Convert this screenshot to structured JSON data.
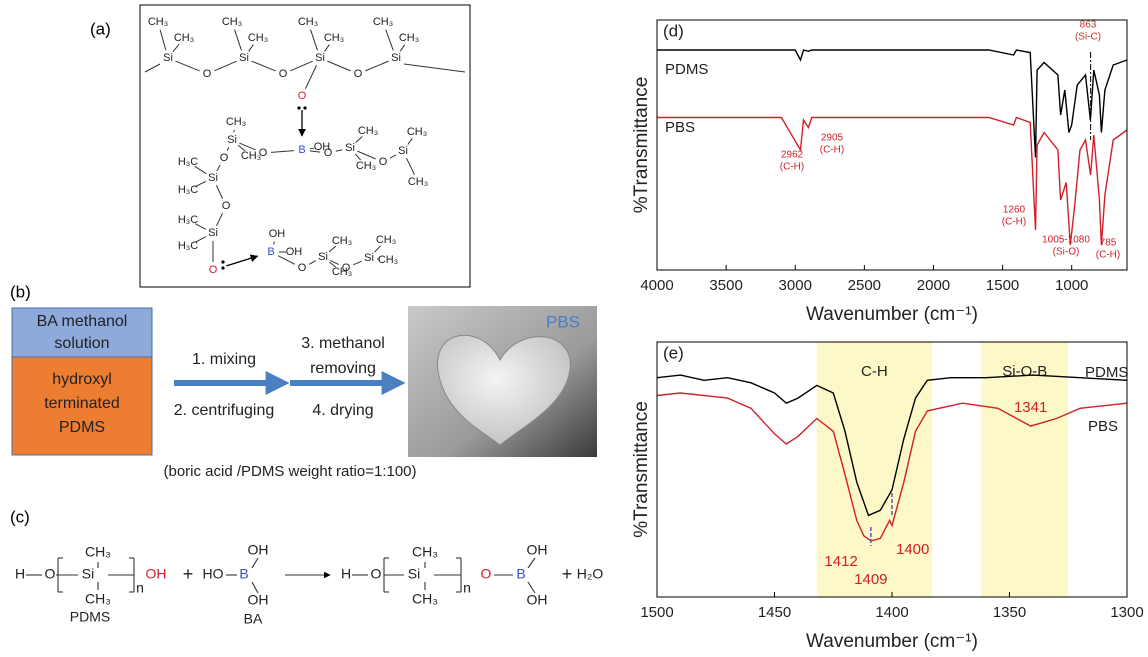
{
  "panel_a": {
    "label": "(a)",
    "atoms": [
      "CH₃",
      "CH₃",
      "Si",
      "O",
      "CH₃",
      "CH₃",
      "Si",
      "O",
      "CH₃",
      "CH₃",
      "Si",
      "O",
      "CH₃",
      "CH₃",
      "Si",
      "O",
      "B",
      "OH",
      "O",
      "Si",
      "CH₃",
      "CH₃",
      "O",
      "H₃C",
      "Si",
      "H₃C",
      "O",
      "H₃C",
      "Si",
      "H₃C",
      "O",
      "B",
      "OH",
      "OH",
      "O",
      "Si",
      "CH₃",
      "CH₃",
      "O",
      "Si",
      "CH₃",
      "CH₃",
      "O",
      "Si",
      "CH₃",
      "CH₃",
      "O",
      "Si",
      "CH₃",
      "CH₃"
    ]
  },
  "panel_b": {
    "label": "(b)",
    "box_top": [
      "BA methanol",
      "solution"
    ],
    "box_bottom": [
      "hydroxyl",
      "terminated",
      "PDMS"
    ],
    "steps": [
      "1. mixing",
      "2. centrifuging",
      "3. methanol",
      "removing",
      "4. drying"
    ],
    "photo_label": "PBS",
    "caption": "(boric acid /PDMS weight ratio=1:100)"
  },
  "panel_c": {
    "label": "(c)",
    "atoms": [
      "H",
      "O",
      "Si",
      "CH₃",
      "CH₃",
      "n",
      "OH",
      "+",
      "HO",
      "B",
      "OH",
      "OH",
      "H",
      "O",
      "Si",
      "CH₃",
      "CH₃",
      "n",
      "O",
      "B",
      "OH",
      "OH",
      "+",
      "H₂O"
    ],
    "names": [
      "PDMS",
      "BA"
    ]
  },
  "chart_data": [
    {
      "type": "line",
      "label": "(d)",
      "xlabel": "Wavenumber (cm⁻¹)",
      "ylabel": "%Transmittance",
      "xlim": [
        4000,
        600
      ],
      "ylim": [
        0,
        100
      ],
      "xticks": [
        4000,
        3500,
        3000,
        2500,
        2000,
        1500,
        1000
      ],
      "series": [
        {
          "name": "PDMS",
          "color": "#000000",
          "x": [
            4000,
            3000,
            2962,
            2940,
            2905,
            2880,
            1600,
            1420,
            1400,
            1300,
            1262,
            1250,
            1200,
            1100,
            1080,
            1050,
            1020,
            1000,
            960,
            900,
            865,
            840,
            800,
            785,
            760,
            700,
            600
          ],
          "values": [
            88,
            88,
            84,
            88,
            87.5,
            88,
            88,
            86,
            88,
            87,
            45,
            80,
            83,
            78,
            62,
            72,
            55,
            58,
            74,
            78,
            60,
            80,
            70,
            55,
            72,
            82,
            84
          ]
        },
        {
          "name": "PBS",
          "color": "#d0202a",
          "x": [
            4000,
            3100,
            2962,
            2940,
            2905,
            2880,
            1600,
            1420,
            1400,
            1300,
            1262,
            1250,
            1200,
            1100,
            1080,
            1040,
            1010,
            980,
            940,
            900,
            863,
            840,
            800,
            785,
            760,
            700,
            600
          ],
          "values": [
            61,
            61,
            48,
            60,
            57,
            61,
            61,
            58,
            61,
            59,
            16,
            50,
            55,
            48,
            28,
            35,
            10,
            25,
            48,
            52,
            38,
            54,
            28,
            10,
            30,
            52,
            56
          ]
        }
      ],
      "annotations": [
        {
          "text": [
            "863",
            "(Si-C)"
          ],
          "x": 863
        },
        {
          "text": [
            "2962",
            "(C-H)"
          ],
          "x": 2962
        },
        {
          "text": [
            "2905",
            "(C-H)"
          ],
          "x": 2905
        },
        {
          "text": [
            "1260",
            "(C-H)"
          ],
          "x": 1260
        },
        {
          "text": [
            "1005-1080",
            "(Si-O)"
          ],
          "x": 1040
        },
        {
          "text": [
            "785",
            "(C-H)"
          ],
          "x": 785
        }
      ]
    },
    {
      "type": "line",
      "label": "(e)",
      "xlabel": "Wavenumber (cm⁻¹)",
      "ylabel": "%Transmittance",
      "xlim": [
        1500,
        1300
      ],
      "ylim": [
        0,
        100
      ],
      "xticks": [
        1500,
        1450,
        1400,
        1350,
        1300
      ],
      "bands": [
        {
          "label": "C-H",
          "range": [
            1432,
            1383
          ]
        },
        {
          "label": "Si-O-B",
          "range": [
            1362,
            1325
          ]
        }
      ],
      "series": [
        {
          "name": "PDMS",
          "color": "#000000",
          "x": [
            1500,
            1490,
            1480,
            1470,
            1460,
            1450,
            1445,
            1440,
            1432,
            1425,
            1420,
            1415,
            1410,
            1405,
            1400,
            1395,
            1390,
            1385,
            1375,
            1360,
            1340,
            1320,
            1300
          ],
          "values": [
            86,
            87,
            85,
            86,
            84,
            80,
            76,
            78,
            83,
            80,
            65,
            45,
            32,
            34,
            42,
            62,
            78,
            85,
            86,
            86,
            87,
            86,
            85
          ]
        },
        {
          "name": "PBS",
          "color": "#d0202a",
          "x": [
            1500,
            1490,
            1470,
            1460,
            1450,
            1445,
            1440,
            1432,
            1425,
            1420,
            1415,
            1412,
            1409,
            1405,
            1401,
            1400,
            1395,
            1390,
            1385,
            1370,
            1355,
            1341,
            1330,
            1320,
            1300
          ],
          "values": [
            79,
            80,
            78,
            74,
            64,
            60,
            63,
            70,
            65,
            48,
            30,
            24,
            22,
            23,
            30,
            28,
            45,
            65,
            73,
            76,
            74,
            67,
            70,
            74,
            76
          ]
        }
      ],
      "annotations": [
        {
          "text": [
            "1341"
          ],
          "x": 1341
        },
        {
          "text": [
            "1412"
          ],
          "x": 1412
        },
        {
          "text": [
            "1409"
          ],
          "x": 1409
        },
        {
          "text": [
            "1400"
          ],
          "x": 1400
        }
      ]
    }
  ]
}
